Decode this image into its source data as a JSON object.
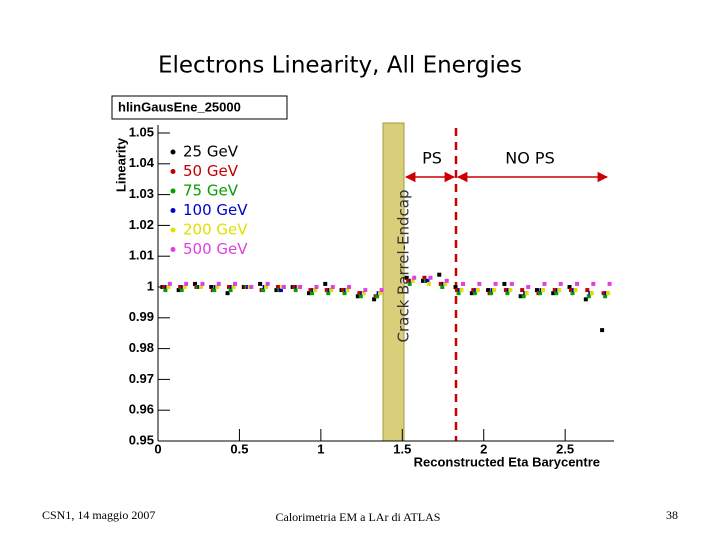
{
  "chart_data": {
    "type": "scatter",
    "title": "Electrons Linearity, All Energies",
    "histogram_name": "hlinGausEne_25000",
    "x_label": "Reconstructed Eta Barycentre",
    "y_label": "Linearity",
    "crack_label": "Crack Barrel-Endcap",
    "ps_label": "PS",
    "nops_label": "NO PS",
    "xlim": [
      0,
      2.8
    ],
    "ylim": [
      0.95,
      1.05
    ],
    "xticks": [
      0,
      0.5,
      1,
      1.5,
      2,
      2.5
    ],
    "yticks": [
      0.95,
      0.96,
      0.97,
      0.98,
      0.99,
      1,
      1.01,
      1.02,
      1.03,
      1.04,
      1.05
    ],
    "x": [
      0.05,
      0.15,
      0.25,
      0.35,
      0.45,
      0.55,
      0.65,
      0.75,
      0.85,
      0.95,
      1.05,
      1.15,
      1.25,
      1.35,
      1.55,
      1.65,
      1.75,
      1.85,
      1.95,
      2.05,
      2.15,
      2.25,
      2.35,
      2.45,
      2.55,
      2.65,
      2.75
    ],
    "series": [
      {
        "name": "25 GeV",
        "color": "#000000",
        "values": [
          1.0,
          0.999,
          1.001,
          1.0,
          0.998,
          1.0,
          1.001,
          0.999,
          1.0,
          0.998,
          1.001,
          0.999,
          0.997,
          0.996,
          1.003,
          1.002,
          1.004,
          1.0,
          0.998,
          0.999,
          1.001,
          0.997,
          0.999,
          0.998,
          1.0,
          0.996,
          0.986
        ]
      },
      {
        "name": "50 GeV",
        "color": "#c00000",
        "values": [
          1.0,
          1.0,
          1.0,
          0.999,
          1.0,
          1.0,
          0.999,
          1.0,
          1.0,
          0.999,
          0.999,
          0.999,
          0.998,
          0.997,
          1.002,
          1.003,
          1.001,
          0.999,
          0.999,
          0.998,
          0.999,
          0.999,
          0.998,
          0.999,
          0.999,
          0.999,
          0.998
        ]
      },
      {
        "name": "75 GeV",
        "color": "#00a000",
        "values": [
          0.999,
          0.999,
          1.0,
          0.999,
          0.999,
          1.0,
          0.999,
          0.999,
          0.999,
          0.998,
          0.998,
          0.998,
          0.997,
          0.997,
          1.001,
          1.002,
          1.0,
          0.998,
          0.998,
          0.998,
          0.998,
          0.997,
          0.998,
          0.998,
          0.998,
          0.997,
          0.997
        ]
      },
      {
        "name": "100 GeV",
        "color": "#0000cc",
        "values": [
          1.0,
          1.0,
          1.0,
          1.0,
          1.0,
          1.0,
          1.0,
          0.999,
          1.0,
          0.999,
          0.999,
          0.999,
          0.998,
          0.998,
          1.002,
          1.002,
          1.001,
          0.999,
          0.999,
          0.999,
          0.999,
          0.998,
          0.999,
          0.999,
          0.999,
          0.998,
          0.998
        ]
      },
      {
        "name": "200 GeV",
        "color": "#e0e000",
        "values": [
          1.0,
          1.0,
          1.0,
          1.0,
          1.0,
          1.0,
          1.0,
          1.0,
          1.0,
          0.999,
          0.999,
          0.999,
          0.998,
          0.998,
          1.002,
          1.001,
          1.001,
          0.999,
          0.999,
          0.999,
          0.999,
          0.998,
          0.999,
          0.999,
          0.999,
          0.998,
          0.998
        ]
      },
      {
        "name": "500 GeV",
        "color": "#e040e0",
        "values": [
          1.001,
          1.001,
          1.001,
          1.001,
          1.001,
          1.0,
          1.001,
          1.0,
          1.0,
          1.0,
          1.0,
          1.0,
          0.999,
          0.999,
          1.003,
          1.003,
          1.002,
          1.001,
          1.001,
          1.001,
          1.001,
          1.0,
          1.001,
          1.001,
          1.001,
          1.001,
          1.001
        ]
      }
    ]
  },
  "footer": {
    "left": "CSN1, 14 maggio 2007",
    "center": "Calorimetria EM a LAr di ATLAS",
    "page": "38"
  }
}
